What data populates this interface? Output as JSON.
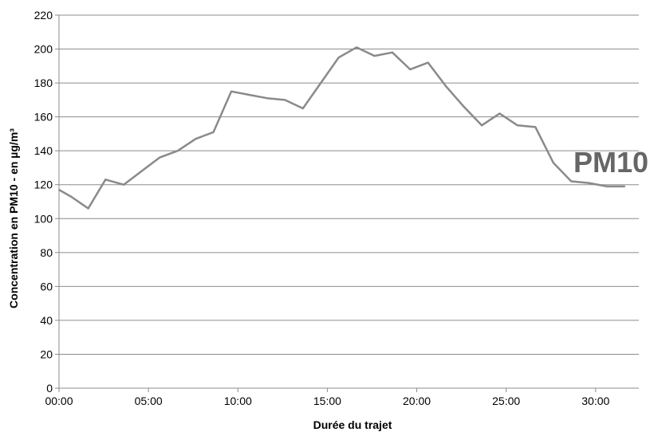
{
  "chart_data": {
    "type": "line",
    "title": "",
    "xlabel": "Durée du trajet",
    "ylabel": "Concentration en PM10 - en µg/m³",
    "annotation": "PM10",
    "x_ticks": [
      "00:00",
      "05:00",
      "10:00",
      "15:00",
      "20:00",
      "25:00",
      "30:00"
    ],
    "y_ticks": [
      "0",
      "20",
      "40",
      "60",
      "80",
      "100",
      "120",
      "140",
      "160",
      "180",
      "200",
      "220"
    ],
    "xlim": [
      "00:00",
      "32:25"
    ],
    "ylim": [
      0,
      220
    ],
    "grid": "horizontal",
    "legend": "none",
    "colors": {
      "line": "#8a8a8a",
      "grid": "#8c8c8c",
      "annotation": "#666666"
    },
    "series": [
      {
        "x": [
          "00:00",
          "00:40",
          "01:38",
          "02:36",
          "03:37",
          "04:37",
          "05:37",
          "06:38",
          "07:38",
          "08:38",
          "09:38",
          "10:38",
          "11:38",
          "12:38",
          "13:38",
          "14:38",
          "15:38",
          "16:38",
          "17:38",
          "18:38",
          "19:38",
          "20:38",
          "21:38",
          "22:38",
          "23:38",
          "24:38",
          "25:38",
          "26:38",
          "27:38",
          "28:38",
          "29:38",
          "30:38",
          "31:38"
        ],
        "values": [
          117,
          113,
          106,
          123,
          120,
          128,
          136,
          140,
          147,
          151,
          175,
          173,
          171,
          170,
          165,
          180,
          195,
          201,
          196,
          198,
          188,
          192,
          178,
          166,
          155,
          162,
          155,
          154,
          133,
          122,
          121,
          119,
          119
        ]
      }
    ]
  }
}
